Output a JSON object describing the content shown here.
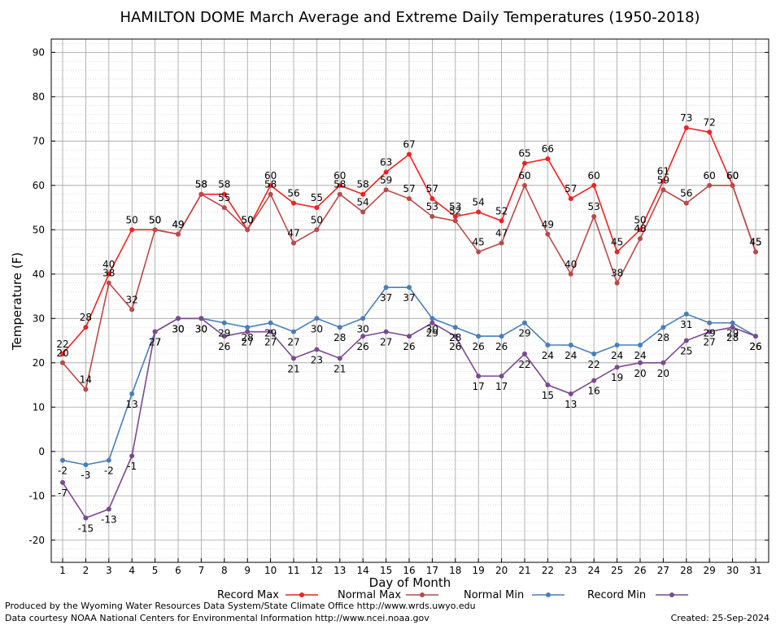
{
  "chart_data": {
    "type": "line",
    "title": "HAMILTON DOME March Average and Extreme Daily Temperatures (1950-2018)",
    "xlabel": "Day of Month",
    "ylabel": "Temperature (F)",
    "ylim": [
      -25,
      93
    ],
    "y_ticks": [
      -20,
      -10,
      0,
      10,
      20,
      30,
      40,
      50,
      60,
      70,
      80,
      90
    ],
    "x": [
      1,
      2,
      3,
      4,
      5,
      6,
      7,
      8,
      9,
      10,
      11,
      12,
      13,
      14,
      15,
      16,
      17,
      18,
      19,
      20,
      21,
      22,
      23,
      24,
      25,
      26,
      27,
      28,
      29,
      30,
      31
    ],
    "grid": true,
    "legend_position": "bottom",
    "series": [
      {
        "name": "Record Max",
        "color": "#ee2222",
        "values": [
          22,
          28,
          40,
          50,
          50,
          49,
          58,
          58,
          50,
          60,
          56,
          55,
          60,
          58,
          63,
          67,
          57,
          53,
          54,
          52,
          65,
          66,
          57,
          60,
          45,
          50,
          61,
          73,
          72,
          60,
          45
        ]
      },
      {
        "name": "Normal Max",
        "color": "#b84a4a",
        "values": [
          20,
          14,
          38,
          32,
          50,
          49,
          58,
          55,
          50,
          58,
          47,
          50,
          58,
          54,
          59,
          57,
          53,
          52,
          45,
          47,
          60,
          49,
          40,
          53,
          38,
          48,
          59,
          56,
          60,
          60,
          45
        ]
      },
      {
        "name": "Normal Min",
        "color": "#4a7fb5",
        "values": [
          -2,
          -3,
          -2,
          13,
          27,
          30,
          30,
          29,
          28,
          29,
          27,
          30,
          28,
          30,
          37,
          37,
          30,
          28,
          26,
          26,
          29,
          24,
          24,
          22,
          24,
          24,
          28,
          31,
          29,
          29,
          26
        ]
      },
      {
        "name": "Record Min",
        "color": "#7a4a8f",
        "values": [
          -7,
          -15,
          -13,
          -1,
          27,
          30,
          30,
          26,
          27,
          27,
          21,
          23,
          21,
          26,
          27,
          26,
          29,
          26,
          17,
          17,
          22,
          15,
          13,
          16,
          19,
          20,
          20,
          25,
          27,
          28,
          26
        ]
      }
    ]
  },
  "footer": {
    "line1": "Produced by the Wyoming Water Resources Data System/State Climate Office http://www.wrds.uwyo.edu",
    "line2": "Data courtesy NOAA National Centers for Environmental Information http://www.ncei.noaa.gov",
    "created": "Created:  25-Sep-2024"
  }
}
